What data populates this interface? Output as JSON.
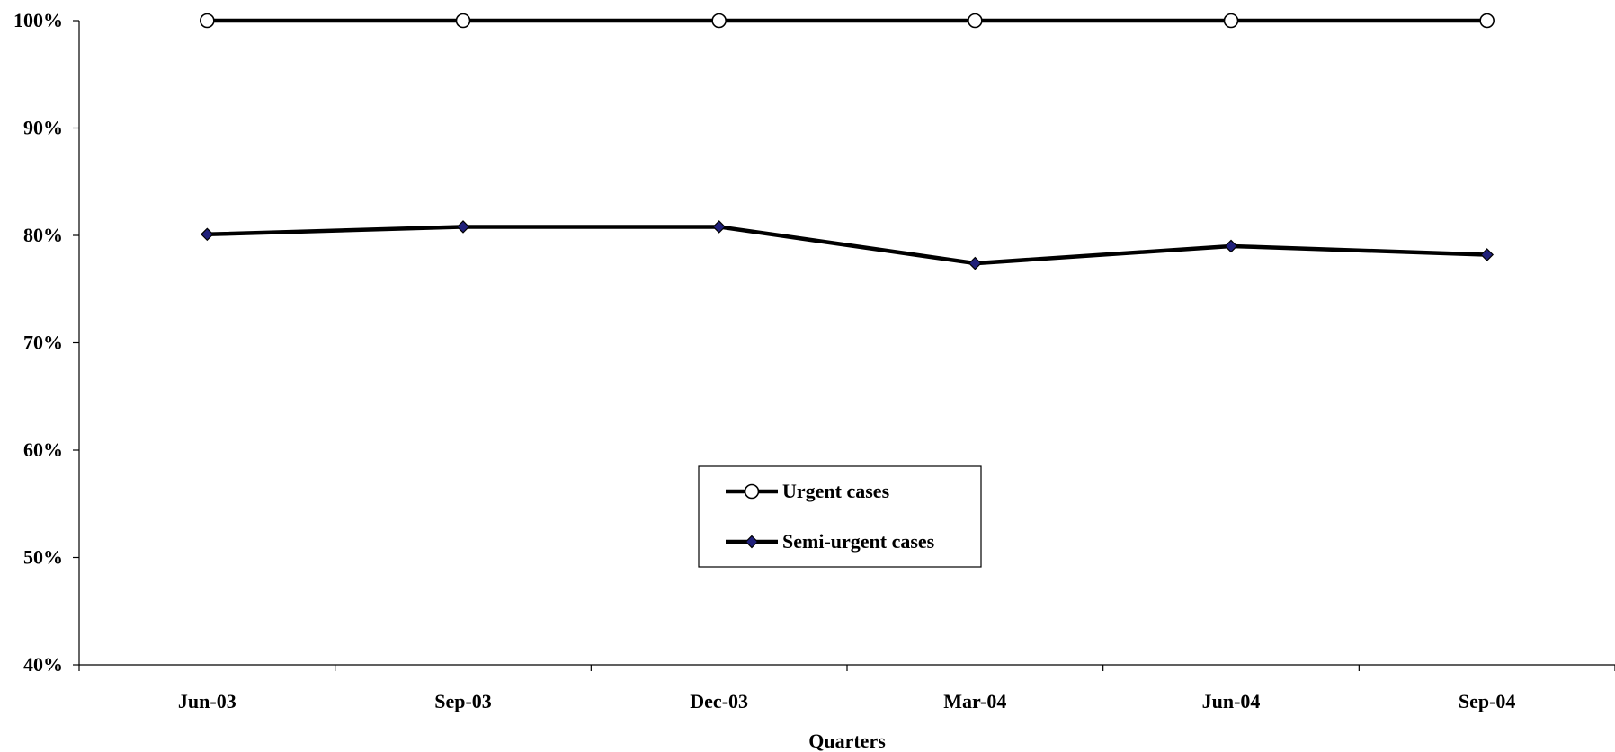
{
  "chart_data": {
    "type": "line",
    "categories": [
      "Jun-03",
      "Sep-03",
      "Dec-03",
      "Mar-04",
      "Jun-04",
      "Sep-04"
    ],
    "series": [
      {
        "name": "Urgent cases",
        "values": [
          100,
          100,
          100,
          100,
          100,
          100
        ],
        "marker": "circle-open",
        "color": "#000000",
        "marker_fill": "#ffffff"
      },
      {
        "name": "Semi-urgent cases",
        "values": [
          80.1,
          80.8,
          80.8,
          77.4,
          79.0,
          78.2
        ],
        "marker": "diamond",
        "color": "#000000",
        "marker_fill": "#1f1f7a"
      }
    ],
    "xlabel": "Quarters",
    "ylabel": "",
    "ylim": [
      40,
      100
    ],
    "yticks": [
      "40%",
      "50%",
      "60%",
      "70%",
      "80%",
      "90%",
      "100%"
    ],
    "grid": false,
    "legend_position": "center"
  }
}
